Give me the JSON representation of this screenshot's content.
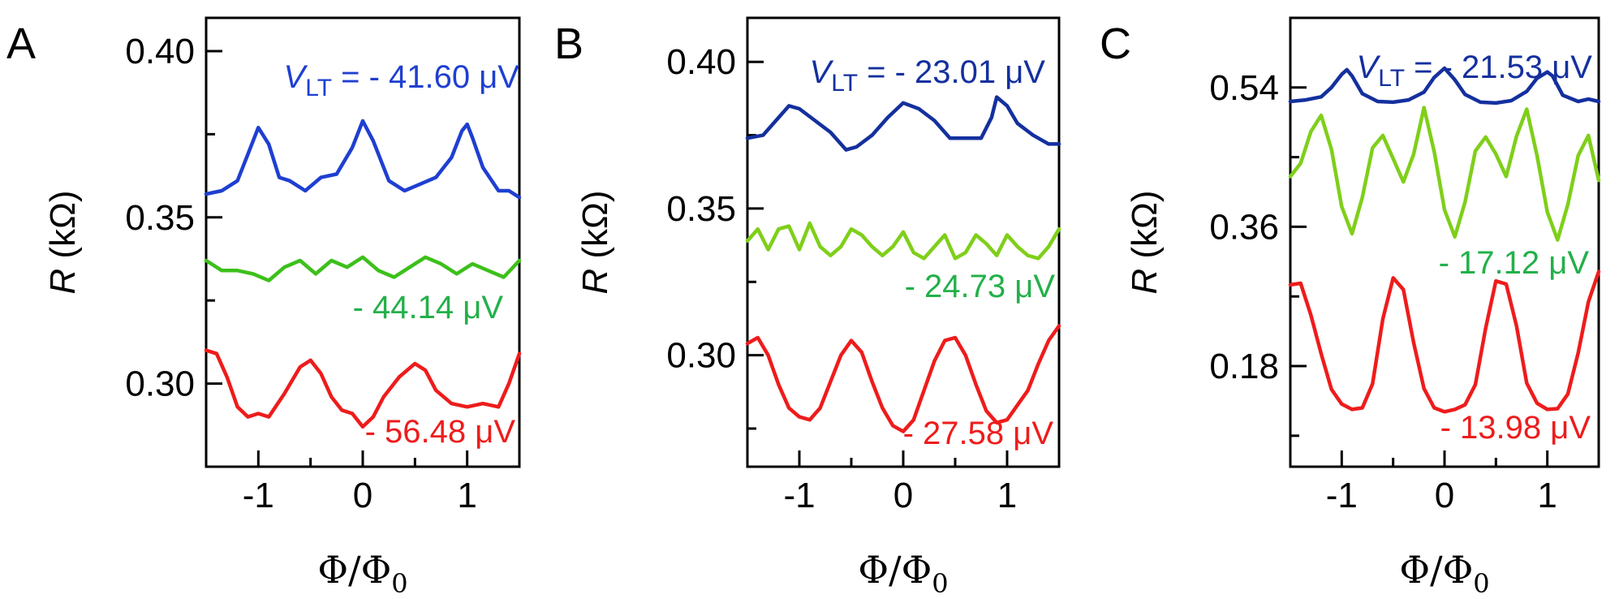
{
  "chart_data": [
    {
      "panel": "A",
      "type": "line",
      "xlabel": "Φ/Φ",
      "xlabel_sub": "0",
      "ylabel": "R",
      "ylabel_unit": "(kΩ)",
      "xlim": [
        -1.5,
        1.5
      ],
      "ylim": [
        0.275,
        0.41
      ],
      "xticks": [
        -1,
        0,
        1
      ],
      "xtick_labels": [
        "-1",
        "0",
        "1"
      ],
      "yticks": [
        0.3,
        0.35,
        0.4
      ],
      "ytick_labels": [
        "0.30",
        "0.35",
        "0.40"
      ],
      "series": [
        {
          "name": "V_LT = - 41.60 μV",
          "label_var": "V",
          "label_sub": "LT",
          "label_value": " = - 41.60 μV",
          "color": "#1f3fd1",
          "x": [
            -1.5,
            -1.35,
            -1.2,
            -1.1,
            -1.0,
            -0.9,
            -0.8,
            -0.7,
            -0.55,
            -0.4,
            -0.25,
            -0.1,
            0.0,
            0.1,
            0.25,
            0.4,
            0.55,
            0.7,
            0.85,
            0.95,
            1.0,
            1.05,
            1.15,
            1.3,
            1.4,
            1.5
          ],
          "y": [
            0.357,
            0.358,
            0.361,
            0.369,
            0.377,
            0.372,
            0.362,
            0.361,
            0.358,
            0.362,
            0.363,
            0.371,
            0.379,
            0.373,
            0.361,
            0.358,
            0.36,
            0.362,
            0.368,
            0.376,
            0.378,
            0.374,
            0.365,
            0.358,
            0.358,
            0.356
          ]
        },
        {
          "name": "- 44.14 μV",
          "label_value": "- 44.14 μV",
          "color": "#3cc01a",
          "x": [
            -1.5,
            -1.35,
            -1.2,
            -1.05,
            -0.9,
            -0.75,
            -0.6,
            -0.45,
            -0.3,
            -0.15,
            0.0,
            0.15,
            0.3,
            0.45,
            0.6,
            0.75,
            0.9,
            1.05,
            1.2,
            1.35,
            1.5
          ],
          "y": [
            0.337,
            0.334,
            0.334,
            0.333,
            0.331,
            0.335,
            0.337,
            0.333,
            0.337,
            0.335,
            0.338,
            0.334,
            0.332,
            0.335,
            0.338,
            0.336,
            0.333,
            0.336,
            0.334,
            0.332,
            0.337
          ]
        },
        {
          "name": "- 56.48 μV",
          "label_value": "- 56.48 μV",
          "color": "#ee1c1c",
          "x": [
            -1.5,
            -1.4,
            -1.3,
            -1.2,
            -1.1,
            -1.0,
            -0.9,
            -0.75,
            -0.6,
            -0.5,
            -0.4,
            -0.3,
            -0.2,
            -0.1,
            0.0,
            0.1,
            0.2,
            0.35,
            0.5,
            0.6,
            0.7,
            0.85,
            1.0,
            1.15,
            1.3,
            1.4,
            1.5
          ],
          "y": [
            0.31,
            0.309,
            0.302,
            0.293,
            0.29,
            0.291,
            0.29,
            0.297,
            0.305,
            0.307,
            0.303,
            0.296,
            0.292,
            0.291,
            0.287,
            0.29,
            0.296,
            0.302,
            0.306,
            0.304,
            0.298,
            0.294,
            0.293,
            0.294,
            0.293,
            0.3,
            0.309
          ]
        }
      ]
    },
    {
      "panel": "B",
      "type": "line",
      "xlabel": "Φ/Φ",
      "xlabel_sub": "0",
      "ylabel": "R",
      "ylabel_unit": "(kΩ)",
      "xlim": [
        -1.5,
        1.5
      ],
      "ylim": [
        0.262,
        0.415
      ],
      "xticks": [
        -1,
        0,
        1
      ],
      "xtick_labels": [
        "-1",
        "0",
        "1"
      ],
      "yticks": [
        0.3,
        0.35,
        0.4
      ],
      "ytick_labels": [
        "0.30",
        "0.35",
        "0.40"
      ],
      "series": [
        {
          "name": "V_LT = - 23.01 μV",
          "label_var": "V",
          "label_sub": "LT",
          "label_value": " = - 23.01 μV",
          "color": "#14309e",
          "x": [
            -1.5,
            -1.35,
            -1.2,
            -1.1,
            -1.0,
            -0.85,
            -0.7,
            -0.55,
            -0.45,
            -0.3,
            -0.15,
            0.0,
            0.15,
            0.3,
            0.45,
            0.6,
            0.75,
            0.85,
            0.9,
            1.0,
            1.1,
            1.25,
            1.4,
            1.5
          ],
          "y": [
            0.374,
            0.375,
            0.381,
            0.385,
            0.384,
            0.38,
            0.376,
            0.37,
            0.371,
            0.375,
            0.381,
            0.386,
            0.384,
            0.38,
            0.374,
            0.374,
            0.374,
            0.381,
            0.388,
            0.385,
            0.379,
            0.375,
            0.372,
            0.372
          ]
        },
        {
          "name": "- 24.73 μV",
          "label_value": "- 24.73 μV",
          "color": "#7fcf1a",
          "x": [
            -1.5,
            -1.4,
            -1.3,
            -1.2,
            -1.1,
            -1.0,
            -0.9,
            -0.8,
            -0.7,
            -0.6,
            -0.5,
            -0.4,
            -0.3,
            -0.2,
            -0.1,
            0.0,
            0.1,
            0.2,
            0.3,
            0.4,
            0.5,
            0.6,
            0.7,
            0.8,
            0.9,
            1.0,
            1.1,
            1.2,
            1.3,
            1.4,
            1.5
          ],
          "y": [
            0.339,
            0.343,
            0.336,
            0.343,
            0.344,
            0.336,
            0.345,
            0.337,
            0.334,
            0.337,
            0.343,
            0.341,
            0.337,
            0.334,
            0.337,
            0.342,
            0.335,
            0.333,
            0.337,
            0.341,
            0.333,
            0.335,
            0.341,
            0.338,
            0.334,
            0.341,
            0.337,
            0.334,
            0.333,
            0.337,
            0.343
          ]
        },
        {
          "name": "- 27.58 μV",
          "label_value": "- 27.58 μV",
          "color": "#ee1c1c",
          "x": [
            -1.5,
            -1.4,
            -1.3,
            -1.2,
            -1.1,
            -1.0,
            -0.9,
            -0.8,
            -0.7,
            -0.6,
            -0.5,
            -0.4,
            -0.3,
            -0.2,
            -0.1,
            0.0,
            0.1,
            0.2,
            0.3,
            0.4,
            0.5,
            0.6,
            0.7,
            0.8,
            0.9,
            1.0,
            1.1,
            1.2,
            1.3,
            1.4,
            1.5
          ],
          "y": [
            0.304,
            0.306,
            0.3,
            0.29,
            0.282,
            0.279,
            0.278,
            0.282,
            0.291,
            0.3,
            0.305,
            0.301,
            0.291,
            0.282,
            0.276,
            0.274,
            0.278,
            0.288,
            0.298,
            0.305,
            0.306,
            0.3,
            0.29,
            0.281,
            0.277,
            0.278,
            0.283,
            0.288,
            0.297,
            0.305,
            0.31
          ]
        }
      ]
    },
    {
      "panel": "C",
      "type": "line",
      "xlabel": "Φ/Φ",
      "xlabel_sub": "0",
      "ylabel": "R",
      "ylabel_unit": "(kΩ)",
      "xlim": [
        -1.5,
        1.5
      ],
      "ylim": [
        0.05,
        0.63
      ],
      "xticks": [
        -1,
        0,
        1
      ],
      "xtick_labels": [
        "-1",
        "0",
        "1"
      ],
      "yticks": [
        0.18,
        0.36,
        0.54
      ],
      "ytick_labels": [
        "0.18",
        "0.36",
        "0.54"
      ],
      "series": [
        {
          "name": "V_LT = - 21.53 μV",
          "label_var": "V",
          "label_sub": "LT",
          "label_value": " = - 21.53 μV",
          "color": "#14309e",
          "x": [
            -1.5,
            -1.35,
            -1.2,
            -1.1,
            -1.0,
            -0.95,
            -0.9,
            -0.8,
            -0.65,
            -0.5,
            -0.35,
            -0.2,
            -0.1,
            0.0,
            0.1,
            0.2,
            0.35,
            0.5,
            0.65,
            0.8,
            0.9,
            1.0,
            1.05,
            1.15,
            1.3,
            1.4,
            1.5
          ],
          "y": [
            0.522,
            0.524,
            0.528,
            0.54,
            0.557,
            0.563,
            0.555,
            0.532,
            0.522,
            0.521,
            0.524,
            0.534,
            0.553,
            0.565,
            0.55,
            0.531,
            0.521,
            0.52,
            0.523,
            0.535,
            0.552,
            0.56,
            0.555,
            0.53,
            0.522,
            0.525,
            0.522
          ]
        },
        {
          "name": "- 17.12 μV",
          "label_value": "- 17.12 μV",
          "color": "#7fcf1a",
          "x": [
            -1.5,
            -1.4,
            -1.3,
            -1.2,
            -1.1,
            -1.0,
            -0.9,
            -0.8,
            -0.7,
            -0.6,
            -0.5,
            -0.4,
            -0.3,
            -0.2,
            -0.1,
            0.0,
            0.1,
            0.2,
            0.3,
            0.4,
            0.5,
            0.6,
            0.7,
            0.8,
            0.9,
            1.0,
            1.1,
            1.2,
            1.3,
            1.4,
            1.5
          ],
          "y": [
            0.425,
            0.442,
            0.483,
            0.504,
            0.46,
            0.386,
            0.351,
            0.398,
            0.462,
            0.478,
            0.448,
            0.418,
            0.454,
            0.514,
            0.457,
            0.382,
            0.347,
            0.392,
            0.458,
            0.476,
            0.454,
            0.425,
            0.477,
            0.512,
            0.452,
            0.379,
            0.343,
            0.389,
            0.452,
            0.478,
            0.42
          ]
        },
        {
          "name": "- 13.98 μV",
          "label_value": "- 13.98 μV",
          "color": "#ee1c1c",
          "x": [
            -1.5,
            -1.4,
            -1.3,
            -1.2,
            -1.1,
            -1.0,
            -0.9,
            -0.8,
            -0.7,
            -0.6,
            -0.5,
            -0.4,
            -0.3,
            -0.2,
            -0.1,
            0.0,
            0.1,
            0.2,
            0.3,
            0.4,
            0.5,
            0.6,
            0.7,
            0.8,
            0.9,
            1.0,
            1.1,
            1.2,
            1.3,
            1.4,
            1.5
          ],
          "y": [
            0.285,
            0.287,
            0.246,
            0.196,
            0.15,
            0.131,
            0.124,
            0.126,
            0.157,
            0.241,
            0.294,
            0.279,
            0.21,
            0.151,
            0.126,
            0.121,
            0.124,
            0.13,
            0.156,
            0.229,
            0.29,
            0.286,
            0.232,
            0.158,
            0.132,
            0.124,
            0.125,
            0.144,
            0.197,
            0.263,
            0.302
          ]
        }
      ]
    }
  ]
}
